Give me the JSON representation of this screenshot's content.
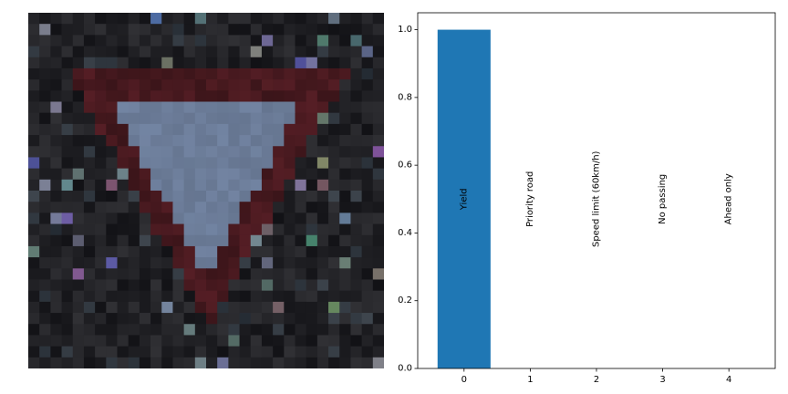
{
  "image": {
    "subject": "yield-sign-photo",
    "palette": {
      "background": "#1c1c1e",
      "border": "#4a1a20",
      "face": "#6e7f9c"
    }
  },
  "chart_data": {
    "type": "bar",
    "title": "",
    "xlabel": "",
    "ylabel": "",
    "categories": [
      "0",
      "1",
      "2",
      "3",
      "4"
    ],
    "bar_labels": [
      "Yield",
      "Priority road",
      "Speed limit (60km/h)",
      "No passing",
      "Ahead only"
    ],
    "values": [
      1.0,
      0.0,
      0.0,
      0.0,
      0.0
    ],
    "ylim": [
      0,
      1.05
    ],
    "yticks": [
      "0.0",
      "0.2",
      "0.4",
      "0.6",
      "0.8",
      "1.0"
    ],
    "grid": false,
    "bar_color": "#1f77b4"
  }
}
